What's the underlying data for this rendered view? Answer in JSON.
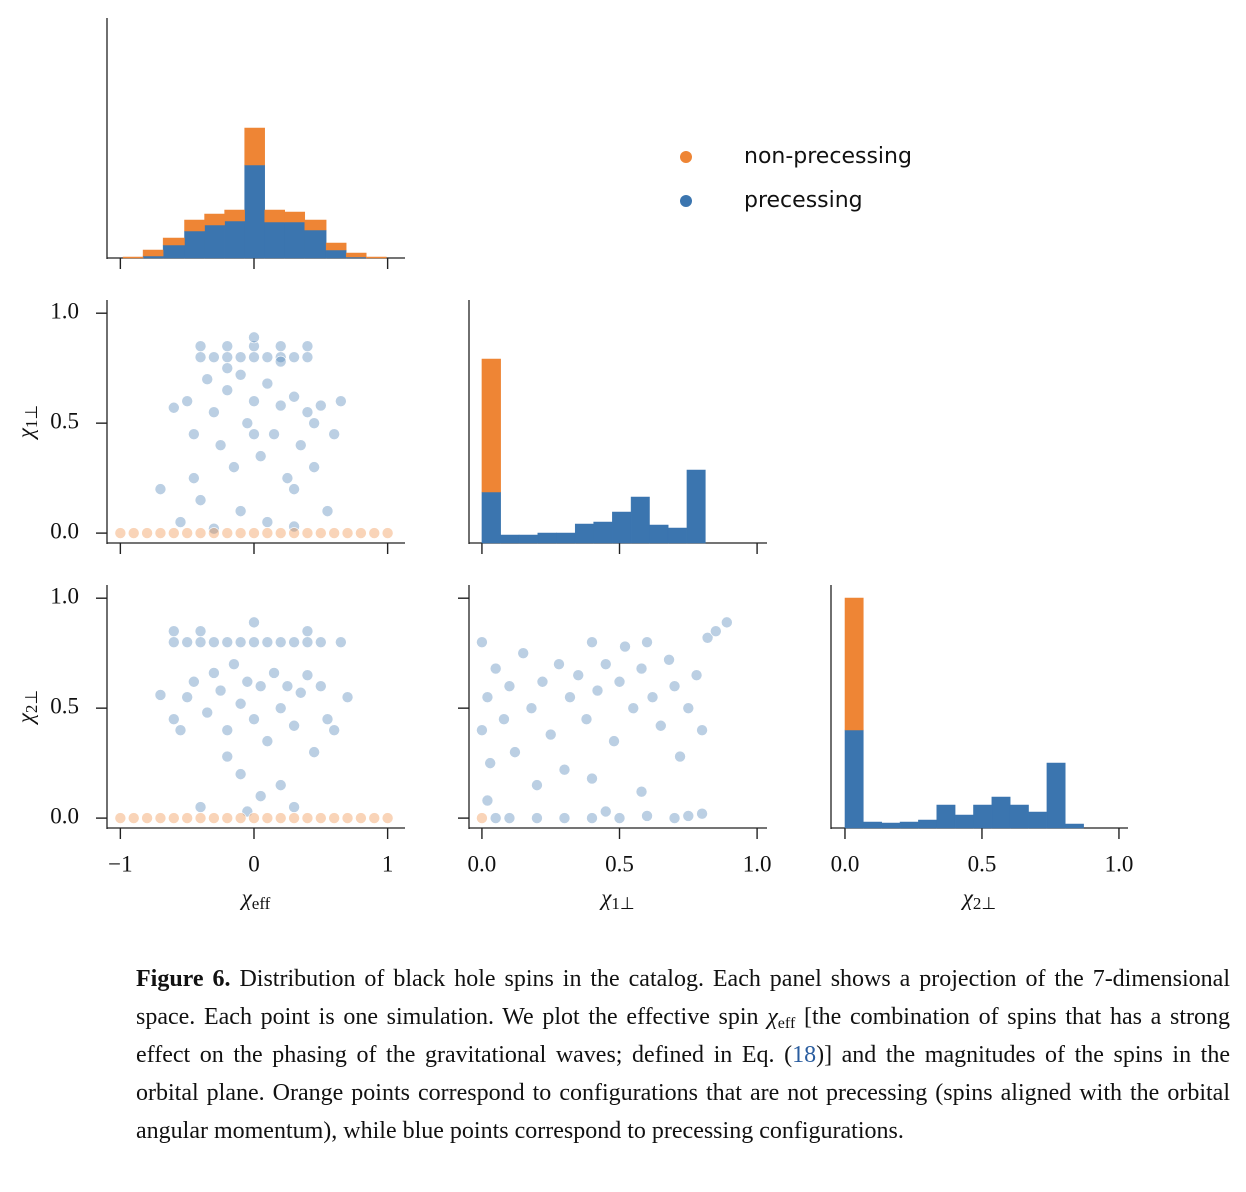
{
  "chart_data": [
    {
      "type": "histogram",
      "stacked": true,
      "legend": "upper right",
      "bins": [
        -0.98,
        -0.83,
        -0.68,
        -0.52,
        -0.37,
        -0.22,
        -0.07,
        0.08,
        0.23,
        0.38,
        0.54,
        0.69,
        0.84,
        0.99
      ],
      "series": [
        {
          "name": "non-precessing",
          "color": "#ee8535",
          "values": [
            1,
            6,
            7,
            11,
            11,
            11,
            37,
            12,
            10,
            10,
            7,
            4,
            1
          ]
        },
        {
          "name": "precessing",
          "color": "#3b75af",
          "values": [
            0,
            2,
            13,
            27,
            33,
            37,
            93,
            36,
            36,
            28,
            8,
            1,
            0
          ]
        }
      ],
      "xlim": [
        -1.1,
        1.13
      ],
      "xticks": [
        -1,
        0,
        1
      ],
      "xtick_labels": false,
      "ylim": [
        0,
        240
      ]
    },
    {
      "type": "scatter",
      "series": [
        {
          "color": "#ee8535",
          "x": [
            -1,
            -0.9,
            -0.8,
            -0.7,
            -0.6,
            -0.5,
            -0.4,
            -0.3,
            -0.2,
            -0.1,
            0,
            0.1,
            0.2,
            0.3,
            0.4,
            0.5,
            0.6,
            0.7,
            0.8,
            0.9,
            1
          ],
          "y": [
            0,
            0,
            0,
            0,
            0,
            0,
            0,
            0,
            0,
            0,
            0,
            0,
            0,
            0,
            0,
            0,
            0,
            0,
            0,
            0,
            0
          ]
        },
        {
          "color": "#3b75af",
          "x": [
            -0.4,
            -0.3,
            -0.2,
            -0.1,
            0,
            0.1,
            0.2,
            0.3,
            0.4,
            -0.4,
            -0.2,
            0,
            0.2,
            0.4,
            -0.5,
            -0.45,
            -0.35,
            -0.3,
            -0.25,
            -0.2,
            -0.15,
            -0.1,
            -0.05,
            0,
            0.05,
            0.1,
            0.15,
            0.2,
            0.25,
            0.3,
            0.35,
            0.4,
            0.45,
            0.5,
            -0.6,
            -0.7,
            -0.55,
            0.55,
            0.6,
            0.65,
            -0.4,
            0.3,
            0,
            -0.1,
            0.1,
            -0.3,
            0.3,
            0.2,
            -0.2,
            0,
            -0.45,
            0.45
          ],
          "y": [
            0.8,
            0.8,
            0.8,
            0.8,
            0.8,
            0.8,
            0.8,
            0.8,
            0.8,
            0.85,
            0.85,
            0.85,
            0.85,
            0.85,
            0.6,
            0.45,
            0.7,
            0.55,
            0.4,
            0.65,
            0.3,
            0.72,
            0.5,
            0.6,
            0.35,
            0.68,
            0.45,
            0.58,
            0.25,
            0.62,
            0.4,
            0.55,
            0.5,
            0.58,
            0.57,
            0.2,
            0.05,
            0.1,
            0.45,
            0.6,
            0.15,
            0.2,
            0.89,
            0.1,
            0.05,
            0.02,
            0.03,
            0.78,
            0.75,
            0.45,
            0.25,
            0.3
          ]
        }
      ],
      "xlim": [
        -1.1,
        1.13
      ],
      "xticks": [
        -1,
        0,
        1
      ],
      "xtick_labels": false,
      "ylim": [
        -0.045,
        1.06
      ],
      "yticks": [
        {
          "value": 0,
          "label": "0.0"
        },
        {
          "value": 0.5,
          "label": "0.5"
        },
        {
          "value": 1,
          "label": "1.0"
        }
      ],
      "ylabel": {
        "symbol": "χ",
        "subscript": "1⊥"
      }
    },
    {
      "type": "histogram",
      "stacked": true,
      "bins": [
        0,
        0.068,
        0.135,
        0.203,
        0.271,
        0.339,
        0.406,
        0.474,
        0.542,
        0.609,
        0.677,
        0.745,
        0.812
      ],
      "series": [
        {
          "color": "#ee8535",
          "values": [
            133,
            0,
            0,
            0,
            0,
            0,
            0,
            0,
            0,
            0,
            0,
            0
          ]
        },
        {
          "color": "#3b75af",
          "values": [
            51,
            8,
            8,
            10,
            10,
            19,
            21,
            31,
            46,
            18,
            15,
            73
          ]
        }
      ],
      "xlim": [
        -0.047,
        1.036
      ],
      "xticks": [
        0,
        0.5,
        1
      ],
      "xtick_labels": false,
      "ylim": [
        0,
        243
      ]
    },
    {
      "type": "scatter",
      "series": [
        {
          "color": "#ee8535",
          "x": [
            -1,
            -0.9,
            -0.8,
            -0.7,
            -0.6,
            -0.5,
            -0.4,
            -0.3,
            -0.2,
            -0.1,
            0,
            0.1,
            0.2,
            0.3,
            0.4,
            0.5,
            0.6,
            0.7,
            0.8,
            0.9,
            1
          ],
          "y": [
            0,
            0,
            0,
            0,
            0,
            0,
            0,
            0,
            0,
            0,
            0,
            0,
            0,
            0,
            0,
            0,
            0,
            0,
            0,
            0,
            0
          ]
        },
        {
          "color": "#3b75af",
          "x": [
            -0.6,
            -0.5,
            -0.4,
            -0.3,
            -0.2,
            -0.1,
            0,
            0.1,
            0.2,
            0.3,
            0.4,
            0.5,
            0.65,
            -0.6,
            -0.4,
            0.4,
            -0.7,
            -0.5,
            -0.45,
            -0.35,
            -0.3,
            -0.25,
            -0.2,
            -0.15,
            -0.1,
            -0.05,
            0,
            0.05,
            0.1,
            0.15,
            0.2,
            0.25,
            0.3,
            0.35,
            0.4,
            0.45,
            0.5,
            0.55,
            0.7,
            -0.55,
            -0.1,
            0.05,
            -0.2,
            0.2,
            0,
            -0.4,
            0.3,
            -0.05,
            0.6,
            -0.6
          ],
          "y": [
            0.8,
            0.8,
            0.8,
            0.8,
            0.8,
            0.8,
            0.8,
            0.8,
            0.8,
            0.8,
            0.8,
            0.8,
            0.8,
            0.85,
            0.85,
            0.85,
            0.56,
            0.55,
            0.62,
            0.48,
            0.66,
            0.58,
            0.4,
            0.7,
            0.52,
            0.62,
            0.45,
            0.6,
            0.35,
            0.66,
            0.5,
            0.6,
            0.42,
            0.57,
            0.65,
            0.3,
            0.6,
            0.45,
            0.55,
            0.4,
            0.2,
            0.1,
            0.28,
            0.15,
            0.89,
            0.05,
            0.05,
            0.03,
            0.4,
            0.45
          ]
        }
      ],
      "xlim": [
        -1.1,
        1.13
      ],
      "xticks": [
        {
          "value": -1,
          "label": "−1"
        },
        0,
        1
      ],
      "ylim": [
        -0.045,
        1.06
      ],
      "yticks": [
        {
          "value": 0,
          "label": "0.0"
        },
        {
          "value": 0.5,
          "label": "0.5"
        },
        {
          "value": 1,
          "label": "1.0"
        }
      ],
      "xlabel": {
        "symbol": "χ",
        "subscript": "eff"
      },
      "ylabel": {
        "symbol": "χ",
        "subscript": "2⊥"
      }
    },
    {
      "type": "scatter",
      "series": [
        {
          "color": "#ee8535",
          "x": [
            0
          ],
          "y": [
            0
          ]
        },
        {
          "color": "#3b75af",
          "x": [
            0,
            0.02,
            0,
            0.03,
            0.02,
            0.05,
            0.08,
            0.1,
            0.12,
            0.15,
            0.18,
            0.2,
            0.22,
            0.25,
            0.28,
            0.3,
            0.32,
            0.35,
            0.38,
            0.4,
            0.42,
            0.45,
            0.48,
            0.5,
            0.52,
            0.55,
            0.58,
            0.6,
            0.62,
            0.65,
            0.68,
            0.7,
            0.72,
            0.75,
            0.78,
            0.8,
            0.82,
            0.85,
            0.89,
            0.58,
            0.4,
            0.1,
            0.2,
            0.3,
            0.4,
            0.5,
            0.6,
            0.7,
            0.8,
            0.05,
            0.45,
            0.75
          ],
          "y": [
            0.8,
            0.55,
            0.4,
            0.25,
            0.08,
            0.68,
            0.45,
            0.6,
            0.3,
            0.75,
            0.5,
            0.15,
            0.62,
            0.38,
            0.7,
            0.22,
            0.55,
            0.65,
            0.45,
            0.8,
            0.58,
            0.7,
            0.35,
            0.62,
            0.78,
            0.5,
            0.68,
            0.8,
            0.55,
            0.42,
            0.72,
            0.6,
            0.28,
            0.5,
            0.65,
            0.4,
            0.82,
            0.85,
            0.89,
            0.12,
            0.18,
            0,
            0,
            0,
            0,
            0,
            0.01,
            0,
            0.02,
            0,
            0.03,
            0.01
          ]
        }
      ],
      "xlim": [
        -0.047,
        1.036
      ],
      "xticks": [
        {
          "value": 0,
          "label": "0.0"
        },
        {
          "value": 0.5,
          "label": "0.5"
        },
        {
          "value": 1,
          "label": "1.0"
        }
      ],
      "ylim": [
        -0.045,
        1.06
      ],
      "yticks": [
        0,
        0.5,
        1
      ],
      "ytick_labels": false,
      "xlabel": {
        "symbol": "χ",
        "subscript": "1⊥"
      }
    },
    {
      "type": "histogram",
      "stacked": true,
      "bins": [
        0,
        0.067,
        0.134,
        0.201,
        0.268,
        0.335,
        0.402,
        0.469,
        0.536,
        0.603,
        0.67,
        0.737,
        0.804,
        0.871
      ],
      "series": [
        {
          "color": "#ee8535",
          "values": [
            132,
            0,
            0,
            0,
            0,
            0,
            0,
            0,
            0,
            0,
            0,
            0,
            0
          ]
        },
        {
          "color": "#3b75af",
          "values": [
            98,
            6,
            5,
            6,
            8,
            23,
            13,
            23,
            31,
            23,
            16,
            65,
            4
          ]
        }
      ],
      "xlim": [
        -0.051,
        1.033
      ],
      "xticks": [
        {
          "value": 0,
          "label": "0.0"
        },
        {
          "value": 0.5,
          "label": "0.5"
        },
        {
          "value": 1,
          "label": "1.0"
        }
      ],
      "ylim": [
        0,
        243
      ],
      "xlabel": {
        "symbol": "χ",
        "subscript": "2⊥"
      }
    }
  ],
  "caption": {
    "label": "Figure 6.",
    "text_1": " Distribution of black hole spins in the catalog. Each panel shows a projection of the 7-dimensional space. Each point is one simulation. We plot the effective spin ",
    "symbol": "χ",
    "subscript": "eff",
    "text_2": " [the combination of spins that has a strong effect on the phasing of the gravitational waves; defined in Eq. (",
    "ref": "18",
    "text_3": ")] and the magnitudes of the spins in the orbital plane. Orange points correspond to configurations that are not precessing (spins aligned with the orbital angular momentum), while blue points correspond to precessing configurations."
  }
}
